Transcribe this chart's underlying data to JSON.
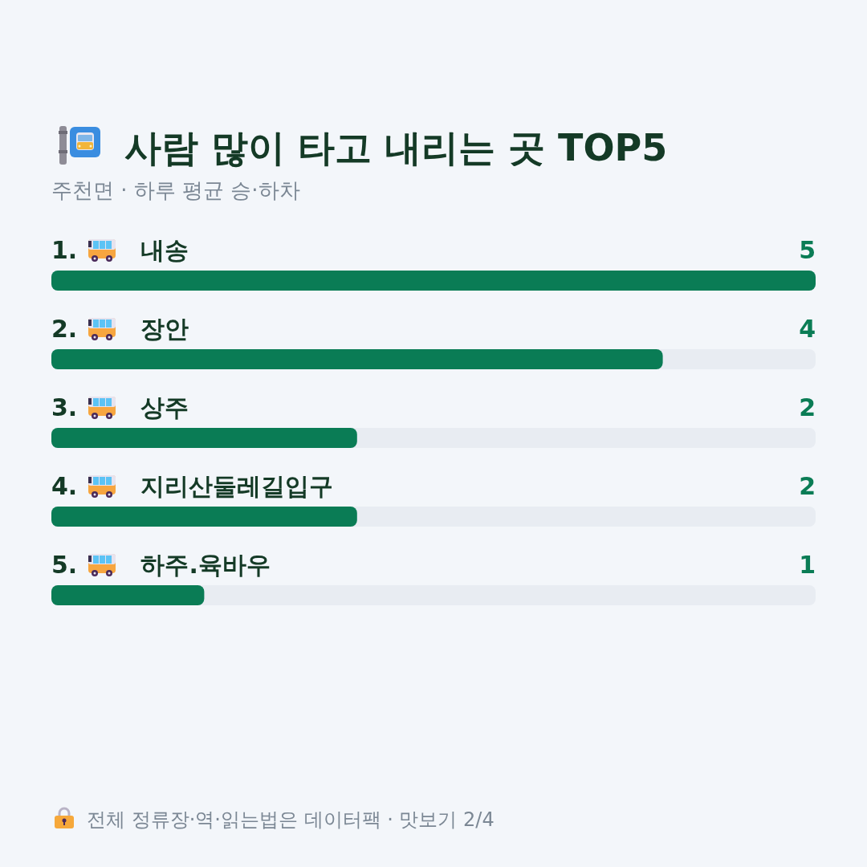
{
  "chart_data": {
    "type": "bar",
    "orientation": "horizontal",
    "title": "사람 많이 타고 내리는 곳 TOP5",
    "subtitle": "주천면 · 하루 평균 승·하차",
    "categories": [
      "1. 내송",
      "2. 장안",
      "3. 상주",
      "4. 지리산둘레길입구",
      "5. 하주.육바우"
    ],
    "values": [
      5,
      4,
      2,
      2,
      1
    ],
    "color": "#0a7c55",
    "xlim": [
      0,
      5
    ],
    "data_labels": true,
    "annotations": [
      "전체 정류장·역·읽는법은 데이터팩 · 맛보기 2/4"
    ]
  }
}
